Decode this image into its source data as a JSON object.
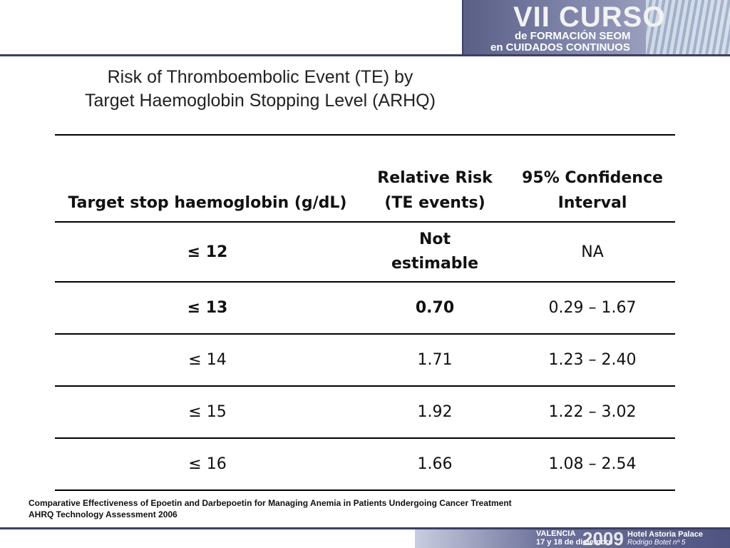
{
  "banner": {
    "line1": "VII CURSO",
    "line2": "de FORMACIÓN SEOM",
    "line3": "en CUIDADOS CONTINUOS"
  },
  "title": {
    "line1": "Risk of Thromboembolic Event (TE) by",
    "line2": "Target Haemoglobin Stopping Level (ARHQ)"
  },
  "table": {
    "headers": [
      {
        "line1": "Target stop haemoglobin (g/dL)",
        "line2": ""
      },
      {
        "line1": "Relative Risk",
        "line2": "(TE events)"
      },
      {
        "line1": "95% Confidence",
        "line2": "Interval"
      }
    ],
    "rows": [
      {
        "target": "≤ 12",
        "rr_line1": "Not",
        "rr_line2": "estimable",
        "ci": "NA"
      },
      {
        "target": "≤ 13",
        "rr": "0.70",
        "ci": "0.29 – 1.67"
      },
      {
        "target": "≤ 14",
        "rr": "1.71",
        "ci": "1.23 – 2.40"
      },
      {
        "target": "≤ 15",
        "rr": "1.92",
        "ci": "1.22 – 3.02"
      },
      {
        "target": "≤ 16",
        "rr": "1.66",
        "ci": "1.08 – 2.54"
      }
    ]
  },
  "footnote": {
    "line1": "Comparative Effectiveness of Epoetin and Darbepoetin for Managing Anemia in Patients Undergoing Cancer Treatment",
    "line2": "AHRQ Technology Assessment 2006"
  },
  "bottom_banner": {
    "city": "VALENCIA",
    "dates": "17 y 18 de diciembre",
    "year": "2009",
    "venue": "Hotel Astoria Palace",
    "address": "Rodrigo Botet nº 5"
  },
  "colors": {
    "highlight": "#9b1c1c",
    "banner": "#5a5f86"
  }
}
